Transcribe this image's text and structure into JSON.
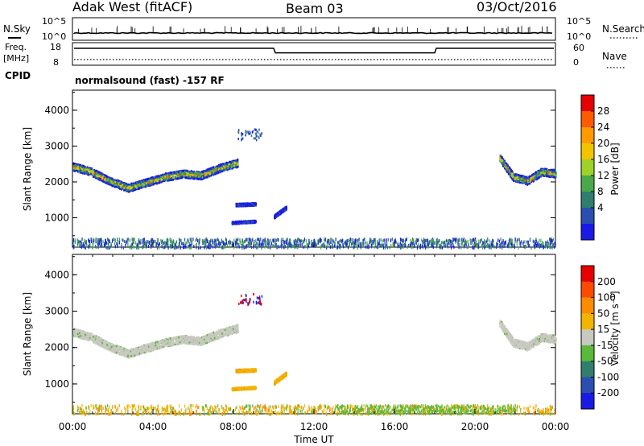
{
  "header": {
    "station": "Adak West (fitACF)",
    "beam": "Beam 03",
    "date": "03/Oct/2016"
  },
  "top_panel": {
    "left_label": "N.Sky",
    "right_label": "N.Search",
    "left_ticks": [
      "10^5",
      "10^0"
    ],
    "right_ticks": [
      "10^5",
      "10^0"
    ]
  },
  "freq_panel": {
    "left_label_top": "Freq.",
    "left_label_bottom": "[MHz]",
    "cpid_label": "CPID",
    "right_label": "Nave",
    "left_ticks": [
      "18",
      "8"
    ],
    "right_ticks": [
      "60",
      "0"
    ]
  },
  "mode_text": "normalsound (fast) -157 RF",
  "x_axis": {
    "label": "Time UT",
    "ticks": [
      "00:00",
      "04:00",
      "08:00",
      "12:00",
      "16:00",
      "20:00",
      "00:00"
    ],
    "range_hours": [
      0,
      24
    ]
  },
  "y_axis": {
    "label": "Slant Range [km]",
    "ticks": [
      "1000",
      "2000",
      "3000",
      "4000"
    ],
    "range_km": [
      180,
      4560
    ]
  },
  "power_colorbar": {
    "label": "Power [dB]",
    "ticks": [
      "4",
      "8",
      "12",
      "16",
      "20",
      "24",
      "28"
    ],
    "colors": [
      "#1a1ae6",
      "#2a4fb0",
      "#2f7e6e",
      "#4aa84a",
      "#9ed22a",
      "#f2c400",
      "#ff9a00",
      "#ff5a00",
      "#e60000"
    ]
  },
  "velocity_colorbar": {
    "label": "Velocity [m s⁻¹]",
    "ticks": [
      "200",
      "100",
      "50",
      "15",
      "-15",
      "-50",
      "-100",
      "-200"
    ],
    "colors": [
      "#1a1ae6",
      "#2a4fb0",
      "#2f7e6e",
      "#5ab83a",
      "#c8c8c0",
      "#f2b400",
      "#ff8c00",
      "#ff4a00",
      "#e60000"
    ]
  },
  "chart_data": {
    "type": "heatmap",
    "x_unit": "hours UT",
    "y_unit": "km",
    "frequency_steps": [
      {
        "start": 0,
        "end": 10,
        "level": 0.75
      },
      {
        "start": 10,
        "end": 18,
        "level": 0.55
      },
      {
        "start": 18,
        "end": 24,
        "level": 0.75
      }
    ],
    "scatter_bands": [
      {
        "name": "main-echo",
        "t0": 0.0,
        "t1": 8.2,
        "r_center": [
          2450,
          2300,
          2050,
          1850,
          2000,
          2150,
          2250,
          2200,
          2400,
          2550
        ],
        "thickness": 220,
        "power": "mixed",
        "velocity": "gray"
      },
      {
        "name": "band-1400",
        "t0": 8.1,
        "t1": 9.1,
        "r_center": [
          1380,
          1400
        ],
        "thickness": 80,
        "power": "blue",
        "velocity": "orange"
      },
      {
        "name": "band-900",
        "t0": 7.9,
        "t1": 9.1,
        "r_center": [
          880,
          920
        ],
        "thickness": 70,
        "power": "blue",
        "velocity": "orange"
      },
      {
        "name": "band-1200",
        "t0": 10.0,
        "t1": 10.6,
        "r_center": [
          1050,
          1300
        ],
        "thickness": 90,
        "power": "blue",
        "velocity": "orange"
      },
      {
        "name": "late-echo",
        "t0": 21.2,
        "t1": 24.0,
        "r_center": [
          2700,
          2150,
          2050,
          2300,
          2250
        ],
        "thickness": 220,
        "power": "mixed",
        "velocity": "gray"
      },
      {
        "name": "ground-scatter",
        "t0": 0.0,
        "t1": 24.0,
        "r_center": [
          300
        ],
        "thickness": 200,
        "power": "low",
        "velocity": "low"
      }
    ]
  }
}
